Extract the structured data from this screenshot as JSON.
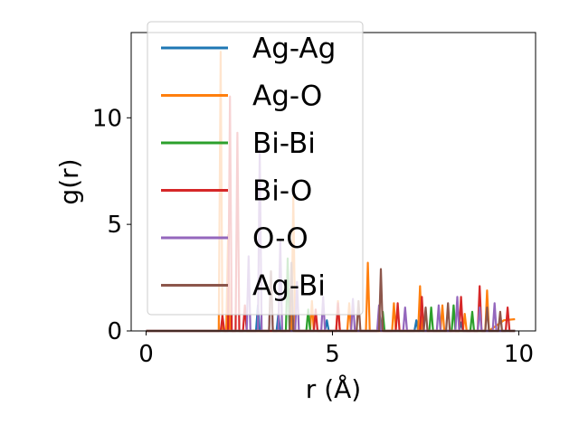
{
  "chart_data": {
    "type": "line",
    "title": "",
    "xlabel": "r (Å)",
    "ylabel": "g(r)",
    "xlim": [
      -0.4,
      10.45
    ],
    "ylim": [
      0,
      14.0
    ],
    "xticks": [
      0,
      5,
      10
    ],
    "xtick_labels": [
      "0",
      "5",
      "10"
    ],
    "yticks": [
      0,
      5,
      10
    ],
    "ytick_labels": [
      "0",
      "5",
      "10"
    ],
    "grid": false,
    "legend_position": "top-left",
    "series": [
      {
        "name": "Ag-Ag",
        "color": "#1f77b4",
        "points": [
          [
            0,
            0
          ],
          [
            2.95,
            0
          ],
          [
            3.0,
            1.2
          ],
          [
            3.05,
            0
          ],
          [
            3.5,
            0
          ],
          [
            3.55,
            0.8
          ],
          [
            3.6,
            0
          ],
          [
            4.8,
            0
          ],
          [
            4.85,
            0.5
          ],
          [
            4.9,
            0
          ],
          [
            6.2,
            0
          ],
          [
            6.25,
            0.6
          ],
          [
            6.3,
            0
          ],
          [
            7.2,
            0
          ],
          [
            7.25,
            0.5
          ],
          [
            7.3,
            0
          ],
          [
            8.4,
            0
          ],
          [
            8.45,
            0.4
          ],
          [
            8.5,
            0
          ],
          [
            9.9,
            0
          ]
        ]
      },
      {
        "name": "Ag-O",
        "color": "#ff7f0e",
        "points": [
          [
            0,
            0
          ],
          [
            1.95,
            0
          ],
          [
            2.0,
            13.1
          ],
          [
            2.05,
            0
          ],
          [
            2.15,
            0
          ],
          [
            2.2,
            4.5
          ],
          [
            2.25,
            0
          ],
          [
            3.9,
            0
          ],
          [
            3.95,
            6.3
          ],
          [
            4.0,
            0
          ],
          [
            4.4,
            0
          ],
          [
            4.45,
            1.4
          ],
          [
            4.5,
            0
          ],
          [
            5.1,
            0
          ],
          [
            5.15,
            1.4
          ],
          [
            5.2,
            0
          ],
          [
            5.4,
            0
          ],
          [
            5.45,
            1.3
          ],
          [
            5.5,
            0
          ],
          [
            5.9,
            0
          ],
          [
            5.95,
            3.2
          ],
          [
            6.0,
            0
          ],
          [
            6.6,
            0
          ],
          [
            6.65,
            1.3
          ],
          [
            6.7,
            0
          ],
          [
            7.3,
            0
          ],
          [
            7.35,
            2.1
          ],
          [
            7.4,
            0
          ],
          [
            7.9,
            0
          ],
          [
            7.95,
            1.2
          ],
          [
            8.0,
            0
          ],
          [
            8.5,
            0
          ],
          [
            8.55,
            0.8
          ],
          [
            8.6,
            0
          ],
          [
            9.1,
            0
          ],
          [
            9.15,
            1.9
          ],
          [
            9.2,
            0
          ],
          [
            9.6,
            0.5
          ],
          [
            9.9,
            0.55
          ]
        ]
      },
      {
        "name": "Bi-Bi",
        "color": "#2ca02c",
        "points": [
          [
            0,
            0
          ],
          [
            3.75,
            0
          ],
          [
            3.8,
            3.4
          ],
          [
            3.85,
            0
          ],
          [
            4.3,
            0
          ],
          [
            4.35,
            1.0
          ],
          [
            4.4,
            0
          ],
          [
            6.3,
            0
          ],
          [
            6.35,
            0.9
          ],
          [
            6.4,
            0
          ],
          [
            7.6,
            0
          ],
          [
            7.65,
            1.1
          ],
          [
            7.7,
            0
          ],
          [
            8.2,
            0
          ],
          [
            8.25,
            1.2
          ],
          [
            8.3,
            0
          ],
          [
            8.7,
            0
          ],
          [
            8.75,
            0.9
          ],
          [
            8.8,
            0
          ],
          [
            9.9,
            0
          ]
        ]
      },
      {
        "name": "Bi-O",
        "color": "#d62728",
        "points": [
          [
            0,
            0
          ],
          [
            2.0,
            0
          ],
          [
            2.05,
            0.7
          ],
          [
            2.1,
            0
          ],
          [
            2.2,
            0
          ],
          [
            2.25,
            11.0
          ],
          [
            2.3,
            0
          ],
          [
            2.4,
            0
          ],
          [
            2.45,
            9.3
          ],
          [
            2.5,
            0
          ],
          [
            2.6,
            0
          ],
          [
            2.65,
            1.2
          ],
          [
            2.7,
            0
          ],
          [
            4.5,
            0
          ],
          [
            4.55,
            1.0
          ],
          [
            4.6,
            0
          ],
          [
            5.1,
            0
          ],
          [
            5.15,
            1.3
          ],
          [
            5.2,
            0
          ],
          [
            6.7,
            0
          ],
          [
            6.75,
            1.3
          ],
          [
            6.8,
            0
          ],
          [
            7.35,
            0
          ],
          [
            7.4,
            1.6
          ],
          [
            7.45,
            0
          ],
          [
            8.4,
            0
          ],
          [
            8.45,
            1.6
          ],
          [
            8.5,
            0
          ],
          [
            8.9,
            0
          ],
          [
            8.95,
            2.1
          ],
          [
            9.0,
            0
          ],
          [
            9.65,
            0
          ],
          [
            9.7,
            1.1
          ],
          [
            9.75,
            0
          ],
          [
            9.9,
            0
          ]
        ]
      },
      {
        "name": "O-O",
        "color": "#9467bd",
        "points": [
          [
            0,
            0
          ],
          [
            2.7,
            0
          ],
          [
            2.75,
            3.5
          ],
          [
            2.8,
            0
          ],
          [
            3.0,
            0
          ],
          [
            3.05,
            8.5
          ],
          [
            3.1,
            0
          ],
          [
            3.3,
            0
          ],
          [
            3.35,
            2.8
          ],
          [
            3.4,
            0
          ],
          [
            3.55,
            0
          ],
          [
            3.6,
            4.2
          ],
          [
            3.65,
            0
          ],
          [
            4.0,
            0
          ],
          [
            4.05,
            2.3
          ],
          [
            4.1,
            0
          ],
          [
            4.7,
            0
          ],
          [
            4.75,
            1.6
          ],
          [
            4.8,
            0
          ],
          [
            5.5,
            0
          ],
          [
            5.55,
            1.5
          ],
          [
            5.6,
            0
          ],
          [
            6.2,
            0
          ],
          [
            6.25,
            1.2
          ],
          [
            6.3,
            0
          ],
          [
            6.9,
            0
          ],
          [
            6.95,
            1.1
          ],
          [
            7.0,
            0
          ],
          [
            7.8,
            0
          ],
          [
            7.85,
            1.2
          ],
          [
            7.9,
            0
          ],
          [
            8.3,
            0
          ],
          [
            8.35,
            1.6
          ],
          [
            8.4,
            0
          ],
          [
            8.9,
            0
          ],
          [
            8.95,
            1.1
          ],
          [
            9.0,
            0
          ],
          [
            9.3,
            0
          ],
          [
            9.35,
            1.3
          ],
          [
            9.4,
            0
          ],
          [
            9.9,
            0
          ]
        ]
      },
      {
        "name": "Ag-Bi",
        "color": "#8c564b",
        "points": [
          [
            0,
            0
          ],
          [
            3.3,
            0
          ],
          [
            3.35,
            2.8
          ],
          [
            3.4,
            0
          ],
          [
            3.85,
            0
          ],
          [
            3.9,
            3.2
          ],
          [
            3.95,
            0
          ],
          [
            5.65,
            0
          ],
          [
            5.7,
            1.4
          ],
          [
            5.75,
            0
          ],
          [
            6.25,
            0
          ],
          [
            6.3,
            2.9
          ],
          [
            6.35,
            0
          ],
          [
            7.45,
            0
          ],
          [
            7.5,
            1.1
          ],
          [
            7.55,
            0
          ],
          [
            8.05,
            0
          ],
          [
            8.1,
            1.3
          ],
          [
            8.15,
            0
          ],
          [
            9.1,
            0
          ],
          [
            9.15,
            1.1
          ],
          [
            9.2,
            0
          ],
          [
            9.45,
            0
          ],
          [
            9.5,
            0.9
          ],
          [
            9.55,
            0
          ],
          [
            9.9,
            0
          ]
        ]
      }
    ]
  }
}
